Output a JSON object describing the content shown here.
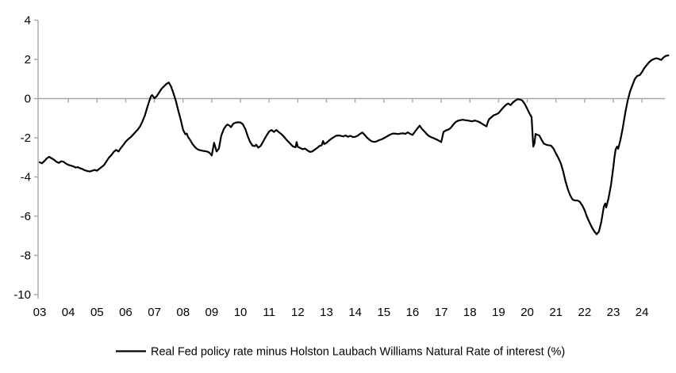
{
  "colors": {
    "line": "#000000",
    "axis": "#a6a6a6",
    "text": "#000000",
    "background": "#ffffff"
  },
  "chart_data": {
    "type": "line",
    "title": "",
    "legend": {
      "label": "Real Fed policy rate minus Holston Laubach Williams Natural Rate of interest (%)",
      "position": "bottom-center",
      "marker": "line"
    },
    "x_axis": {
      "unit": "year",
      "start_year": 2003,
      "tick_labels": [
        "03",
        "04",
        "05",
        "06",
        "07",
        "08",
        "09",
        "10",
        "11",
        "12",
        "13",
        "14",
        "15",
        "16",
        "17",
        "18",
        "19",
        "20",
        "21",
        "22",
        "23",
        "24"
      ]
    },
    "y_axis": {
      "ticks": [
        4,
        2,
        0,
        -2,
        -4,
        -6,
        -8,
        -10
      ],
      "range": [
        -10,
        4
      ]
    },
    "grid": "zero-line-only",
    "series": [
      {
        "name": "Real Fed policy rate minus Holston Laubach Williams Natural Rate of interest (%)",
        "color": "#000000",
        "points": [
          [
            2003.0,
            -3.25
          ],
          [
            2003.08,
            -3.3
          ],
          [
            2003.17,
            -3.18
          ],
          [
            2003.25,
            -3.05
          ],
          [
            2003.33,
            -2.97
          ],
          [
            2003.42,
            -3.05
          ],
          [
            2003.5,
            -3.12
          ],
          [
            2003.58,
            -3.22
          ],
          [
            2003.67,
            -3.28
          ],
          [
            2003.75,
            -3.2
          ],
          [
            2003.83,
            -3.22
          ],
          [
            2003.92,
            -3.32
          ],
          [
            2004.0,
            -3.38
          ],
          [
            2004.08,
            -3.42
          ],
          [
            2004.17,
            -3.45
          ],
          [
            2004.25,
            -3.52
          ],
          [
            2004.33,
            -3.5
          ],
          [
            2004.42,
            -3.56
          ],
          [
            2004.5,
            -3.6
          ],
          [
            2004.58,
            -3.66
          ],
          [
            2004.67,
            -3.7
          ],
          [
            2004.75,
            -3.72
          ],
          [
            2004.83,
            -3.68
          ],
          [
            2004.92,
            -3.64
          ],
          [
            2005.0,
            -3.68
          ],
          [
            2005.08,
            -3.58
          ],
          [
            2005.17,
            -3.48
          ],
          [
            2005.25,
            -3.38
          ],
          [
            2005.33,
            -3.2
          ],
          [
            2005.42,
            -3.0
          ],
          [
            2005.5,
            -2.88
          ],
          [
            2005.58,
            -2.72
          ],
          [
            2005.67,
            -2.62
          ],
          [
            2005.75,
            -2.7
          ],
          [
            2005.83,
            -2.52
          ],
          [
            2005.92,
            -2.36
          ],
          [
            2006.0,
            -2.2
          ],
          [
            2006.08,
            -2.08
          ],
          [
            2006.17,
            -1.97
          ],
          [
            2006.25,
            -1.85
          ],
          [
            2006.33,
            -1.72
          ],
          [
            2006.42,
            -1.58
          ],
          [
            2006.5,
            -1.42
          ],
          [
            2006.58,
            -1.18
          ],
          [
            2006.67,
            -0.85
          ],
          [
            2006.75,
            -0.45
          ],
          [
            2006.83,
            -0.08
          ],
          [
            2006.88,
            0.12
          ],
          [
            2006.92,
            0.18
          ],
          [
            2007.0,
            0.02
          ],
          [
            2007.08,
            0.12
          ],
          [
            2007.17,
            0.32
          ],
          [
            2007.25,
            0.5
          ],
          [
            2007.33,
            0.62
          ],
          [
            2007.42,
            0.75
          ],
          [
            2007.5,
            0.82
          ],
          [
            2007.58,
            0.62
          ],
          [
            2007.67,
            0.25
          ],
          [
            2007.75,
            -0.12
          ],
          [
            2007.83,
            -0.6
          ],
          [
            2007.92,
            -1.1
          ],
          [
            2008.0,
            -1.6
          ],
          [
            2008.08,
            -1.82
          ],
          [
            2008.13,
            -1.78
          ],
          [
            2008.17,
            -1.95
          ],
          [
            2008.25,
            -2.12
          ],
          [
            2008.33,
            -2.32
          ],
          [
            2008.42,
            -2.48
          ],
          [
            2008.5,
            -2.58
          ],
          [
            2008.58,
            -2.63
          ],
          [
            2008.67,
            -2.66
          ],
          [
            2008.75,
            -2.68
          ],
          [
            2008.83,
            -2.7
          ],
          [
            2008.92,
            -2.76
          ],
          [
            2009.0,
            -2.9
          ],
          [
            2009.08,
            -2.25
          ],
          [
            2009.17,
            -2.7
          ],
          [
            2009.25,
            -2.55
          ],
          [
            2009.33,
            -1.9
          ],
          [
            2009.42,
            -1.55
          ],
          [
            2009.5,
            -1.38
          ],
          [
            2009.55,
            -1.32
          ],
          [
            2009.62,
            -1.38
          ],
          [
            2009.67,
            -1.46
          ],
          [
            2009.75,
            -1.28
          ],
          [
            2009.83,
            -1.23
          ],
          [
            2009.92,
            -1.21
          ],
          [
            2010.0,
            -1.22
          ],
          [
            2010.08,
            -1.3
          ],
          [
            2010.17,
            -1.55
          ],
          [
            2010.25,
            -1.9
          ],
          [
            2010.33,
            -2.2
          ],
          [
            2010.42,
            -2.4
          ],
          [
            2010.5,
            -2.43
          ],
          [
            2010.55,
            -2.35
          ],
          [
            2010.62,
            -2.5
          ],
          [
            2010.7,
            -2.42
          ],
          [
            2010.75,
            -2.3
          ],
          [
            2010.83,
            -2.08
          ],
          [
            2010.92,
            -1.86
          ],
          [
            2011.0,
            -1.68
          ],
          [
            2011.08,
            -1.6
          ],
          [
            2011.17,
            -1.7
          ],
          [
            2011.25,
            -1.6
          ],
          [
            2011.33,
            -1.7
          ],
          [
            2011.42,
            -1.8
          ],
          [
            2011.5,
            -1.92
          ],
          [
            2011.58,
            -2.06
          ],
          [
            2011.67,
            -2.2
          ],
          [
            2011.75,
            -2.32
          ],
          [
            2011.83,
            -2.44
          ],
          [
            2011.92,
            -2.48
          ],
          [
            2011.96,
            -2.22
          ],
          [
            2012.0,
            -2.46
          ],
          [
            2012.08,
            -2.52
          ],
          [
            2012.17,
            -2.58
          ],
          [
            2012.25,
            -2.55
          ],
          [
            2012.33,
            -2.64
          ],
          [
            2012.42,
            -2.72
          ],
          [
            2012.5,
            -2.7
          ],
          [
            2012.58,
            -2.62
          ],
          [
            2012.67,
            -2.52
          ],
          [
            2012.75,
            -2.42
          ],
          [
            2012.83,
            -2.38
          ],
          [
            2012.88,
            -2.16
          ],
          [
            2012.92,
            -2.32
          ],
          [
            2013.0,
            -2.26
          ],
          [
            2013.08,
            -2.15
          ],
          [
            2013.17,
            -2.05
          ],
          [
            2013.25,
            -1.97
          ],
          [
            2013.33,
            -1.9
          ],
          [
            2013.42,
            -1.88
          ],
          [
            2013.5,
            -1.9
          ],
          [
            2013.58,
            -1.93
          ],
          [
            2013.67,
            -1.88
          ],
          [
            2013.75,
            -1.95
          ],
          [
            2013.83,
            -1.9
          ],
          [
            2013.92,
            -1.96
          ],
          [
            2014.0,
            -1.95
          ],
          [
            2014.08,
            -1.9
          ],
          [
            2014.17,
            -1.8
          ],
          [
            2014.25,
            -1.73
          ],
          [
            2014.33,
            -1.85
          ],
          [
            2014.42,
            -2.0
          ],
          [
            2014.5,
            -2.1
          ],
          [
            2014.58,
            -2.18
          ],
          [
            2014.67,
            -2.21
          ],
          [
            2014.75,
            -2.18
          ],
          [
            2014.83,
            -2.12
          ],
          [
            2014.92,
            -2.08
          ],
          [
            2015.0,
            -2.02
          ],
          [
            2015.08,
            -1.95
          ],
          [
            2015.17,
            -1.88
          ],
          [
            2015.25,
            -1.82
          ],
          [
            2015.33,
            -1.78
          ],
          [
            2015.42,
            -1.79
          ],
          [
            2015.5,
            -1.81
          ],
          [
            2015.58,
            -1.78
          ],
          [
            2015.67,
            -1.77
          ],
          [
            2015.75,
            -1.8
          ],
          [
            2015.83,
            -1.72
          ],
          [
            2015.92,
            -1.8
          ],
          [
            2016.0,
            -1.85
          ],
          [
            2016.08,
            -1.7
          ],
          [
            2016.17,
            -1.52
          ],
          [
            2016.25,
            -1.38
          ],
          [
            2016.33,
            -1.55
          ],
          [
            2016.42,
            -1.68
          ],
          [
            2016.5,
            -1.82
          ],
          [
            2016.58,
            -1.92
          ],
          [
            2016.67,
            -1.98
          ],
          [
            2016.75,
            -2.03
          ],
          [
            2016.83,
            -2.08
          ],
          [
            2016.92,
            -2.15
          ],
          [
            2017.0,
            -2.22
          ],
          [
            2017.08,
            -1.7
          ],
          [
            2017.17,
            -1.62
          ],
          [
            2017.25,
            -1.58
          ],
          [
            2017.33,
            -1.5
          ],
          [
            2017.42,
            -1.33
          ],
          [
            2017.5,
            -1.2
          ],
          [
            2017.58,
            -1.13
          ],
          [
            2017.67,
            -1.1
          ],
          [
            2017.75,
            -1.08
          ],
          [
            2017.83,
            -1.1
          ],
          [
            2017.92,
            -1.12
          ],
          [
            2018.0,
            -1.14
          ],
          [
            2018.08,
            -1.16
          ],
          [
            2018.17,
            -1.12
          ],
          [
            2018.25,
            -1.15
          ],
          [
            2018.33,
            -1.2
          ],
          [
            2018.42,
            -1.28
          ],
          [
            2018.5,
            -1.35
          ],
          [
            2018.58,
            -1.42
          ],
          [
            2018.63,
            -1.18
          ],
          [
            2018.67,
            -1.05
          ],
          [
            2018.75,
            -0.95
          ],
          [
            2018.83,
            -0.85
          ],
          [
            2018.92,
            -0.8
          ],
          [
            2019.0,
            -0.74
          ],
          [
            2019.08,
            -0.6
          ],
          [
            2019.17,
            -0.45
          ],
          [
            2019.25,
            -0.33
          ],
          [
            2019.33,
            -0.25
          ],
          [
            2019.42,
            -0.33
          ],
          [
            2019.5,
            -0.2
          ],
          [
            2019.58,
            -0.1
          ],
          [
            2019.67,
            -0.03
          ],
          [
            2019.75,
            -0.05
          ],
          [
            2019.83,
            -0.1
          ],
          [
            2019.92,
            -0.3
          ],
          [
            2020.0,
            -0.52
          ],
          [
            2020.08,
            -0.76
          ],
          [
            2020.15,
            -0.95
          ],
          [
            2020.21,
            -2.45
          ],
          [
            2020.25,
            -2.28
          ],
          [
            2020.29,
            -1.8
          ],
          [
            2020.33,
            -1.84
          ],
          [
            2020.42,
            -1.88
          ],
          [
            2020.5,
            -2.1
          ],
          [
            2020.58,
            -2.3
          ],
          [
            2020.67,
            -2.36
          ],
          [
            2020.75,
            -2.38
          ],
          [
            2020.83,
            -2.4
          ],
          [
            2020.92,
            -2.56
          ],
          [
            2021.0,
            -2.8
          ],
          [
            2021.08,
            -3.02
          ],
          [
            2021.17,
            -3.3
          ],
          [
            2021.25,
            -3.7
          ],
          [
            2021.33,
            -4.2
          ],
          [
            2021.42,
            -4.65
          ],
          [
            2021.5,
            -4.95
          ],
          [
            2021.58,
            -5.15
          ],
          [
            2021.67,
            -5.2
          ],
          [
            2021.75,
            -5.2
          ],
          [
            2021.83,
            -5.26
          ],
          [
            2021.92,
            -5.46
          ],
          [
            2022.0,
            -5.7
          ],
          [
            2022.08,
            -6.02
          ],
          [
            2022.17,
            -6.32
          ],
          [
            2022.25,
            -6.56
          ],
          [
            2022.33,
            -6.76
          ],
          [
            2022.42,
            -6.92
          ],
          [
            2022.5,
            -6.78
          ],
          [
            2022.58,
            -6.3
          ],
          [
            2022.67,
            -5.5
          ],
          [
            2022.72,
            -5.35
          ],
          [
            2022.75,
            -5.56
          ],
          [
            2022.83,
            -5.1
          ],
          [
            2022.92,
            -4.4
          ],
          [
            2023.0,
            -3.5
          ],
          [
            2023.04,
            -3.0
          ],
          [
            2023.08,
            -2.6
          ],
          [
            2023.13,
            -2.45
          ],
          [
            2023.17,
            -2.56
          ],
          [
            2023.25,
            -2.1
          ],
          [
            2023.33,
            -1.5
          ],
          [
            2023.42,
            -0.7
          ],
          [
            2023.5,
            -0.1
          ],
          [
            2023.58,
            0.35
          ],
          [
            2023.67,
            0.7
          ],
          [
            2023.75,
            1.0
          ],
          [
            2023.83,
            1.15
          ],
          [
            2023.92,
            1.2
          ],
          [
            2024.0,
            1.35
          ],
          [
            2024.08,
            1.55
          ],
          [
            2024.17,
            1.72
          ],
          [
            2024.25,
            1.86
          ],
          [
            2024.33,
            1.96
          ],
          [
            2024.42,
            2.02
          ],
          [
            2024.5,
            2.06
          ],
          [
            2024.58,
            2.03
          ],
          [
            2024.67,
            1.97
          ],
          [
            2024.75,
            2.1
          ],
          [
            2024.83,
            2.18
          ],
          [
            2024.92,
            2.2
          ]
        ]
      }
    ]
  }
}
